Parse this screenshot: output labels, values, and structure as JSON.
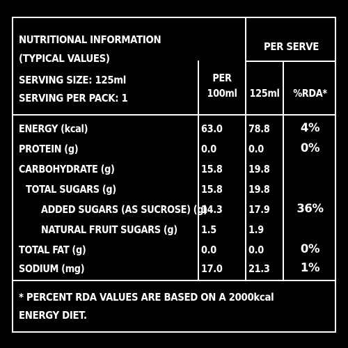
{
  "header": {
    "title_line1": "NUTRITIONAL INFORMATION",
    "title_line2": "(TYPICAL VALUES)",
    "serving_size": "SERVING SIZE: 125ml",
    "serving_per_pack": "SERVING PER PACK: 1",
    "per_serve": "PER SERVE",
    "col_per100_line1": "PER",
    "col_per100_line2": "100ml",
    "col_125": "125ml",
    "col_rda": "%RDA*"
  },
  "rows": [
    {
      "label": "ENERGY (kcal)",
      "per100": "63.0",
      "serve": "78.8",
      "rda": "4%"
    },
    {
      "label": "PROTEIN (g)",
      "per100": "0.0",
      "serve": "0.0",
      "rda": "0%"
    },
    {
      "label": "CARBOHYDRATE (g)",
      "per100": "15.8",
      "serve": "19.8",
      "rda": ""
    },
    {
      "label": "TOTAL SUGARS (g)",
      "per100": "15.8",
      "serve": "19.8",
      "rda": ""
    },
    {
      "label": "ADDED SUGARS (AS SUCROSE) (g)",
      "per100": "14.3",
      "serve": "17.9",
      "rda": "36%"
    },
    {
      "label": "NATURAL FRUIT SUGARS (g)",
      "per100": "1.5",
      "serve": "1.9",
      "rda": ""
    },
    {
      "label": "TOTAL FAT (g)",
      "per100": "0.0",
      "serve": "0.0",
      "rda": "0%"
    },
    {
      "label": "SODIUM (mg)",
      "per100": "17.0",
      "serve": "21.3",
      "rda": "1%"
    }
  ],
  "footnote_line1": "* PERCENT RDA VALUES ARE BASED ON A 2000kcal",
  "footnote_line2": "ENERGY DIET."
}
